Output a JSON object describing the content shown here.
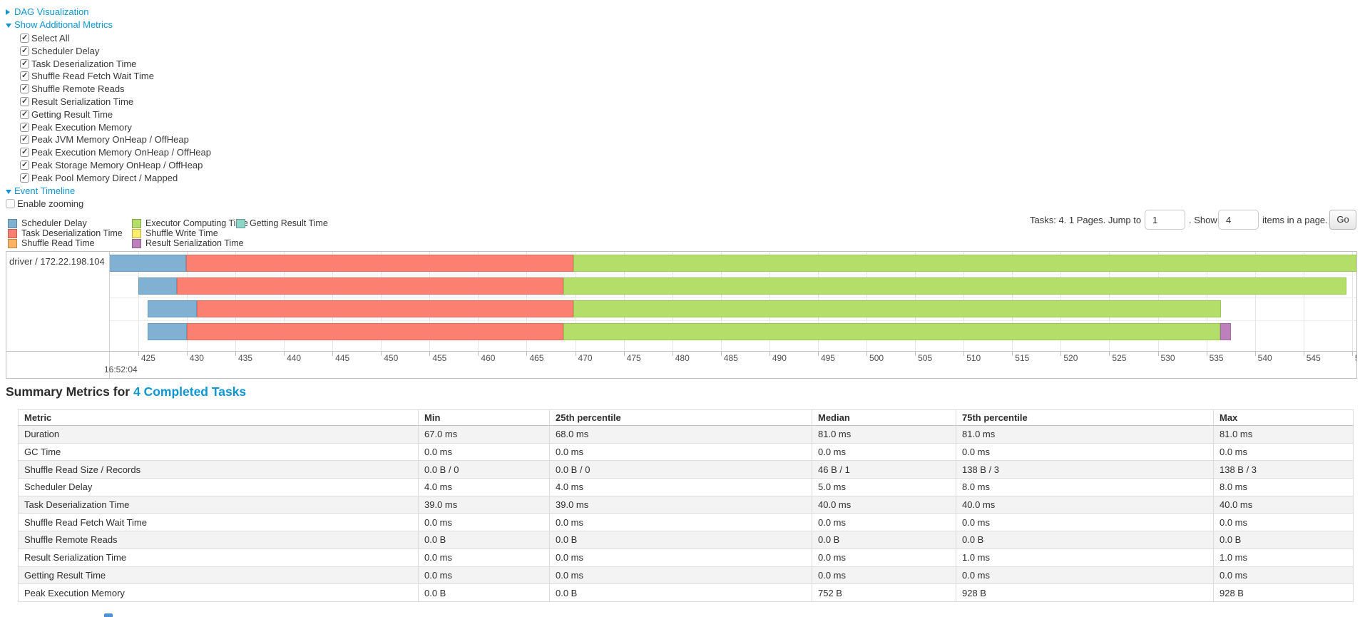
{
  "colors": {
    "link": "#0d95d4",
    "metric_colors": {
      "scheduler_delay": {
        "fill": "#80B1D3",
        "border": "#6598BB"
      },
      "task_deserialization": {
        "fill": "#FB8072",
        "border": "#E16A5C"
      },
      "shuffle_read": {
        "fill": "#FDB462",
        "border": "#E79A47"
      },
      "executor_computing": {
        "fill": "#B3DE69",
        "border": "#9ACA50"
      },
      "shuffle_write": {
        "fill": "#FFED6F",
        "border": "#E8D85C"
      },
      "result_serialization": {
        "fill": "#BC80BD",
        "border": "#A869AA"
      },
      "getting_result": {
        "fill": "#8DD3C7",
        "border": "#74BDB0"
      }
    }
  },
  "controls": {
    "dag_toggle": {
      "label": "DAG Visualization",
      "collapsed": true
    },
    "metrics_toggle": {
      "label": "Show Additional Metrics",
      "collapsed": false
    },
    "metric_checkboxes": [
      {
        "label": "Select All",
        "checked": true
      },
      {
        "label": "Scheduler Delay",
        "checked": true
      },
      {
        "label": "Task Deserialization Time",
        "checked": true
      },
      {
        "label": "Shuffle Read Fetch Wait Time",
        "checked": true
      },
      {
        "label": "Shuffle Remote Reads",
        "checked": true
      },
      {
        "label": "Result Serialization Time",
        "checked": true
      },
      {
        "label": "Getting Result Time",
        "checked": true
      },
      {
        "label": "Peak Execution Memory",
        "checked": true
      },
      {
        "label": "Peak JVM Memory OnHeap / OffHeap",
        "checked": true
      },
      {
        "label": "Peak Execution Memory OnHeap / OffHeap",
        "checked": true
      },
      {
        "label": "Peak Storage Memory OnHeap / OffHeap",
        "checked": true
      },
      {
        "label": "Peak Pool Memory Direct / Mapped",
        "checked": true
      }
    ],
    "event_timeline_toggle": {
      "label": "Event Timeline",
      "collapsed": false
    },
    "enable_zooming": {
      "label": "Enable zooming",
      "checked": false
    }
  },
  "legend": {
    "columns": [
      [
        {
          "key": "scheduler_delay",
          "label": "Scheduler Delay"
        },
        {
          "key": "task_deserialization",
          "label": "Task Deserialization Time"
        },
        {
          "key": "shuffle_read",
          "label": "Shuffle Read Time"
        }
      ],
      [
        {
          "key": "executor_computing",
          "label": "Executor Computing Time"
        },
        {
          "key": "shuffle_write",
          "label": "Shuffle Write Time"
        },
        {
          "key": "result_serialization",
          "label": "Result Serialization Time"
        }
      ],
      [
        {
          "key": "getting_result",
          "label": "Getting Result Time"
        }
      ]
    ]
  },
  "pagination": {
    "prefix": "Tasks: 4. 1 Pages. Jump to",
    "jump_value": "1",
    "mid": ". Show",
    "show_value": "4",
    "suffix": "items in a page.",
    "go_label": "Go"
  },
  "chart_data": {
    "type": "timeline",
    "title": "Event Timeline",
    "group_label": "driver / 172.22.198.104",
    "axis": {
      "major_label": "16:52:04",
      "unit": "ms within 16:52:04",
      "tick_min": 425,
      "tick_max": 550,
      "tick_step": 5,
      "window_start_ms": 422.0,
      "window_end_ms": 550.6,
      "grid": true
    },
    "tasks": [
      {
        "segments": [
          {
            "metric": "scheduler_delay",
            "start_ms": 422.0,
            "end_ms": 429.9
          },
          {
            "metric": "task_deserialization",
            "start_ms": 429.9,
            "end_ms": 469.8
          },
          {
            "metric": "executor_computing",
            "start_ms": 469.8,
            "end_ms": 550.6
          }
        ]
      },
      {
        "segments": [
          {
            "metric": "scheduler_delay",
            "start_ms": 425.0,
            "end_ms": 429.0
          },
          {
            "metric": "task_deserialization",
            "start_ms": 429.0,
            "end_ms": 468.8
          },
          {
            "metric": "executor_computing",
            "start_ms": 468.8,
            "end_ms": 549.4
          }
        ]
      },
      {
        "segments": [
          {
            "metric": "scheduler_delay",
            "start_ms": 426.0,
            "end_ms": 431.0
          },
          {
            "metric": "task_deserialization",
            "start_ms": 431.0,
            "end_ms": 469.8
          },
          {
            "metric": "executor_computing",
            "start_ms": 469.8,
            "end_ms": 536.5
          }
        ]
      },
      {
        "segments": [
          {
            "metric": "scheduler_delay",
            "start_ms": 426.0,
            "end_ms": 430.0
          },
          {
            "metric": "task_deserialization",
            "start_ms": 430.0,
            "end_ms": 468.8
          },
          {
            "metric": "executor_computing",
            "start_ms": 468.8,
            "end_ms": 536.4
          },
          {
            "metric": "result_serialization",
            "start_ms": 536.4,
            "end_ms": 537.5
          }
        ]
      }
    ]
  },
  "summary": {
    "title_prefix": "Summary Metrics for",
    "title_link": "4 Completed Tasks",
    "table": {
      "headers": [
        "Metric",
        "Min",
        "25th percentile",
        "Median",
        "75th percentile",
        "Max"
      ],
      "rows": [
        {
          "metric": "Duration",
          "values": [
            "67.0 ms",
            "68.0 ms",
            "81.0 ms",
            "81.0 ms",
            "81.0 ms"
          ]
        },
        {
          "metric": "GC Time",
          "values": [
            "0.0 ms",
            "0.0 ms",
            "0.0 ms",
            "0.0 ms",
            "0.0 ms"
          ]
        },
        {
          "metric": "Shuffle Read Size / Records",
          "values": [
            "0.0 B / 0",
            "0.0 B / 0",
            "46 B / 1",
            "138 B / 3",
            "138 B / 3"
          ]
        },
        {
          "metric": "Scheduler Delay",
          "values": [
            "4.0 ms",
            "4.0 ms",
            "5.0 ms",
            "8.0 ms",
            "8.0 ms"
          ]
        },
        {
          "metric": "Task Deserialization Time",
          "values": [
            "39.0 ms",
            "39.0 ms",
            "40.0 ms",
            "40.0 ms",
            "40.0 ms"
          ]
        },
        {
          "metric": "Shuffle Read Fetch Wait Time",
          "values": [
            "0.0 ms",
            "0.0 ms",
            "0.0 ms",
            "0.0 ms",
            "0.0 ms"
          ]
        },
        {
          "metric": "Shuffle Remote Reads",
          "values": [
            "0.0 B",
            "0.0 B",
            "0.0 B",
            "0.0 B",
            "0.0 B"
          ]
        },
        {
          "metric": "Result Serialization Time",
          "values": [
            "0.0 ms",
            "0.0 ms",
            "0.0 ms",
            "1.0 ms",
            "1.0 ms"
          ]
        },
        {
          "metric": "Getting Result Time",
          "values": [
            "0.0 ms",
            "0.0 ms",
            "0.0 ms",
            "0.0 ms",
            "0.0 ms"
          ]
        },
        {
          "metric": "Peak Execution Memory",
          "values": [
            "0.0 B",
            "0.0 B",
            "752 B",
            "928 B",
            "928 B"
          ]
        }
      ]
    }
  }
}
